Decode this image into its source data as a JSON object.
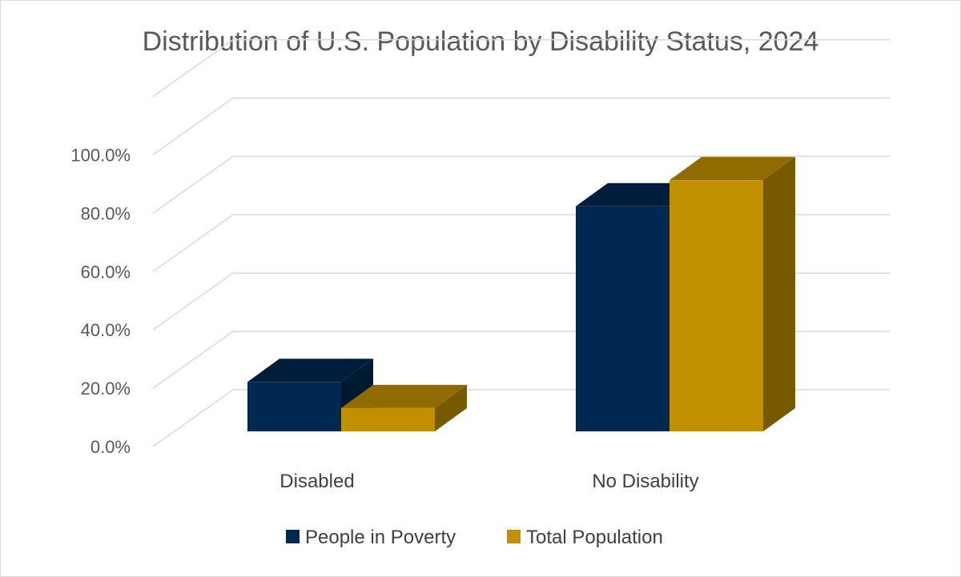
{
  "chart_data": {
    "type": "bar",
    "title": "Distribution of U.S. Population by Disability Status, 2024",
    "categories": [
      "Disabled",
      "No Disability"
    ],
    "series": [
      {
        "name": "People in Poverty",
        "values": [
          18.0,
          82.0
        ],
        "color": "#002850"
      },
      {
        "name": "Total Population",
        "values": [
          8.5,
          91.5
        ],
        "color": "#C09000"
      }
    ],
    "ylim": [
      0,
      100
    ],
    "yticks": [
      "0.0%",
      "20.0%",
      "40.0%",
      "60.0%",
      "80.0%",
      "100.0%"
    ],
    "xlabel": "",
    "ylabel": "",
    "grid": true,
    "legend_position": "bottom"
  }
}
